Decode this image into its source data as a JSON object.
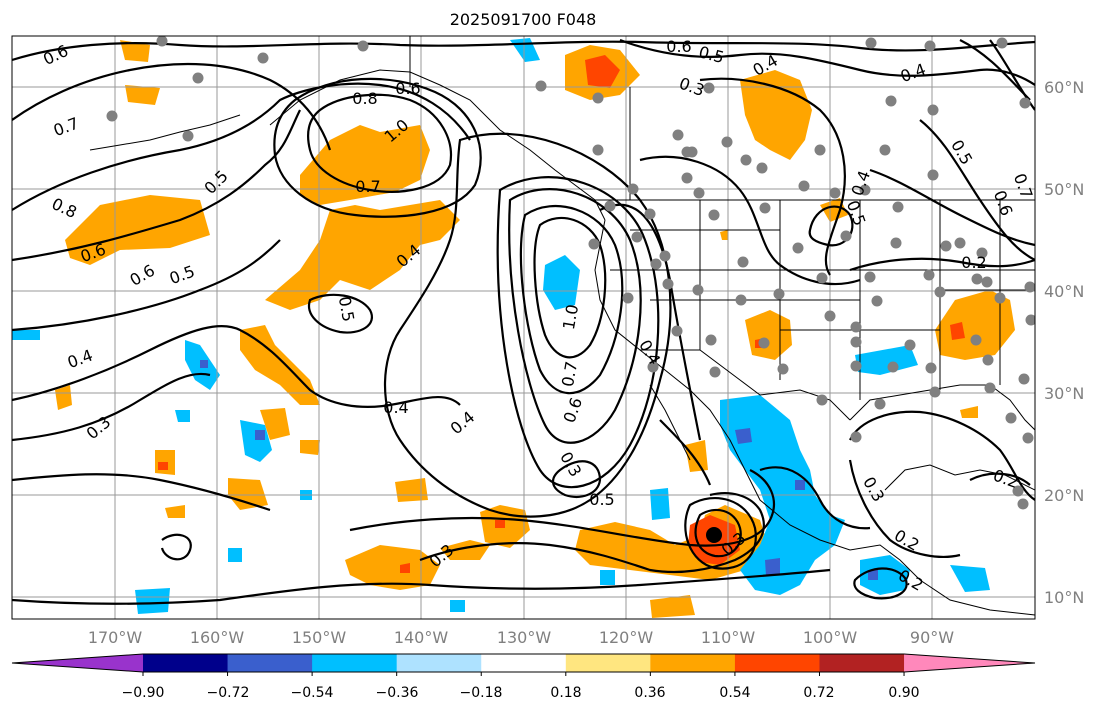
{
  "title": "2025091700 F048",
  "lon_labels": [
    "170°W",
    "160°W",
    "150°W",
    "140°W",
    "130°W",
    "120°W",
    "110°W",
    "100°W",
    "90°W"
  ],
  "lat_labels": [
    "60°N",
    "50°N",
    "40°N",
    "30°N",
    "20°N",
    "10°N"
  ],
  "colorbar": {
    "ticks": [
      "−0.90",
      "−0.72",
      "−0.54",
      "−0.36",
      "−0.18",
      "0.18",
      "0.36",
      "0.54",
      "0.72",
      "0.90"
    ],
    "colors": [
      "#9933cc",
      "#00008b",
      "#3a5fcd",
      "#00bfff",
      "#aee2ff",
      "#ffffff",
      "#ffe680",
      "#ffa500",
      "#ff4500",
      "#b22222",
      "#ff88bb"
    ]
  },
  "contour_labels": {
    "c06a": "0.6",
    "c06b": "0.6",
    "c05a": "0.5",
    "c04a": "0.4",
    "c03a": "0.3",
    "c07a": "0.7",
    "c08a": "0.8",
    "c06c": "0.6",
    "c10a": "1.0",
    "c05b": "0.5",
    "c07b": "0.7",
    "c08b": "0.8",
    "c06d": "0.6",
    "c05c": "0.5",
    "c06e": "0.6",
    "c04b": "0.4",
    "c05d": "0.5",
    "c04c": "0.4",
    "c03b": "0.3",
    "c04d": "0.4",
    "c10b": "1.0",
    "c07c": "0.7",
    "c06f": "0.6",
    "c04e": "0.4",
    "c03c": "0.3",
    "c05e": "0.5",
    "c03d": "0.3",
    "c03e": "0.3",
    "c04f": "0.4",
    "c05f": "0.5",
    "c07d": "0.7",
    "c06g": "0.6",
    "c02a": "0.2",
    "c05g": "0.5",
    "c04g": "0.4",
    "c03f": "0.3",
    "c02b": "0.2",
    "c02c": "0.2",
    "c02d": "0.2",
    "c04h": "0.4"
  }
}
